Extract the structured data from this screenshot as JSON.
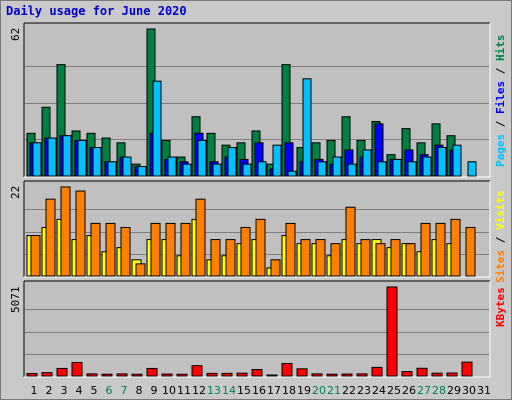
{
  "title": "Daily usage for June 2020",
  "chart_data": [
    {
      "type": "bar",
      "panel": "top",
      "max_label": "62",
      "ylim": [
        0,
        62
      ],
      "grid": true,
      "categories": [
        "1",
        "2",
        "3",
        "4",
        "5",
        "6",
        "7",
        "8",
        "9",
        "10",
        "11",
        "12",
        "13",
        "14",
        "15",
        "16",
        "17",
        "18",
        "19",
        "20",
        "21",
        "22",
        "23",
        "24",
        "25",
        "26",
        "27",
        "28",
        "29",
        "30",
        "31"
      ],
      "legend": [
        "Pages",
        "Files",
        "Hits"
      ],
      "series": [
        {
          "name": "Hits",
          "color": "#008040",
          "values": [
            18,
            29,
            47,
            19,
            18,
            16,
            14,
            5,
            62,
            15,
            8,
            25,
            18,
            13,
            14,
            19,
            5,
            47,
            12,
            14,
            15,
            25,
            15,
            23,
            9,
            20,
            14,
            22,
            17,
            0,
            0
          ]
        },
        {
          "name": "Files",
          "color": "#0000ff",
          "values": [
            14,
            16,
            17,
            15,
            12,
            6,
            8,
            4,
            18,
            7,
            6,
            18,
            6,
            8,
            7,
            14,
            3,
            14,
            6,
            7,
            5,
            11,
            8,
            22,
            7,
            11,
            9,
            13,
            11,
            0,
            0
          ]
        },
        {
          "name": "Pages",
          "color": "#00c0ff",
          "values": [
            14,
            16,
            17,
            15,
            12,
            6,
            8,
            4,
            40,
            8,
            5,
            15,
            5,
            12,
            5,
            6,
            13,
            2,
            41,
            6,
            8,
            5,
            11,
            6,
            7,
            6,
            8,
            12,
            13,
            6,
            0
          ]
        }
      ]
    },
    {
      "type": "bar",
      "panel": "middle",
      "max_label": "22",
      "ylim": [
        0,
        22
      ],
      "grid": true,
      "categories": [
        "1",
        "2",
        "3",
        "4",
        "5",
        "6",
        "7",
        "8",
        "9",
        "10",
        "11",
        "12",
        "13",
        "14",
        "15",
        "16",
        "17",
        "18",
        "19",
        "20",
        "21",
        "22",
        "23",
        "24",
        "25",
        "26",
        "27",
        "28",
        "29",
        "30",
        "31"
      ],
      "legend": [
        "Sites",
        "Visits"
      ],
      "series": [
        {
          "name": "Visits",
          "color": "#ffff00",
          "values": [
            10,
            12,
            14,
            9,
            10,
            6,
            7,
            4,
            9,
            9,
            5,
            14,
            4,
            5,
            8,
            9,
            2,
            10,
            8,
            8,
            5,
            9,
            8,
            9,
            7,
            8,
            6,
            9,
            8,
            0,
            0
          ]
        },
        {
          "name": "Sites",
          "color": "#ff8000",
          "values": [
            10,
            19,
            22,
            21,
            13,
            13,
            12,
            3,
            13,
            13,
            13,
            19,
            9,
            9,
            12,
            14,
            4,
            13,
            9,
            9,
            8,
            17,
            9,
            8,
            9,
            8,
            13,
            13,
            14,
            12,
            0
          ]
        }
      ]
    },
    {
      "type": "bar",
      "panel": "bottom",
      "max_label": "5071",
      "ylim": [
        0,
        5071
      ],
      "grid": true,
      "categories": [
        "1",
        "2",
        "3",
        "4",
        "5",
        "6",
        "7",
        "8",
        "9",
        "10",
        "11",
        "12",
        "13",
        "14",
        "15",
        "16",
        "17",
        "18",
        "19",
        "20",
        "21",
        "22",
        "23",
        "24",
        "25",
        "26",
        "27",
        "28",
        "29",
        "30",
        "31"
      ],
      "legend": [
        "KBytes"
      ],
      "series": [
        {
          "name": "KBytes",
          "color": "#ff0000",
          "values": [
            140,
            190,
            430,
            770,
            120,
            100,
            120,
            100,
            430,
            110,
            100,
            590,
            150,
            150,
            160,
            370,
            50,
            710,
            410,
            120,
            100,
            110,
            120,
            490,
            5071,
            250,
            440,
            160,
            170,
            790,
            0
          ]
        }
      ]
    }
  ],
  "x_labels": [
    {
      "label": "1",
      "weekend": false
    },
    {
      "label": "2",
      "weekend": false
    },
    {
      "label": "3",
      "weekend": false
    },
    {
      "label": "4",
      "weekend": false
    },
    {
      "label": "5",
      "weekend": false
    },
    {
      "label": "6",
      "weekend": true
    },
    {
      "label": "7",
      "weekend": true
    },
    {
      "label": "8",
      "weekend": false
    },
    {
      "label": "9",
      "weekend": false
    },
    {
      "label": "10",
      "weekend": false
    },
    {
      "label": "11",
      "weekend": false
    },
    {
      "label": "12",
      "weekend": false
    },
    {
      "label": "13",
      "weekend": true
    },
    {
      "label": "14",
      "weekend": true
    },
    {
      "label": "15",
      "weekend": false
    },
    {
      "label": "16",
      "weekend": false
    },
    {
      "label": "17",
      "weekend": false
    },
    {
      "label": "18",
      "weekend": false
    },
    {
      "label": "19",
      "weekend": false
    },
    {
      "label": "20",
      "weekend": true
    },
    {
      "label": "21",
      "weekend": true
    },
    {
      "label": "22",
      "weekend": false
    },
    {
      "label": "23",
      "weekend": false
    },
    {
      "label": "24",
      "weekend": false
    },
    {
      "label": "25",
      "weekend": false
    },
    {
      "label": "26",
      "weekend": false
    },
    {
      "label": "27",
      "weekend": true
    },
    {
      "label": "28",
      "weekend": true
    },
    {
      "label": "29",
      "weekend": false
    },
    {
      "label": "30",
      "weekend": false
    },
    {
      "label": "31",
      "weekend": false
    }
  ],
  "colors": {
    "weekday": "#000000",
    "weekend": "#00805a",
    "grid": "#7f7f7f",
    "panel_bg": "#c0c0c0"
  },
  "right_labels": {
    "top": [
      {
        "text": "Pages",
        "color": "#00c0ff"
      },
      {
        "text": " / ",
        "color": "#000000"
      },
      {
        "text": "Files",
        "color": "#0000ff"
      },
      {
        "text": " / ",
        "color": "#000000"
      },
      {
        "text": "Hits",
        "color": "#008040"
      }
    ],
    "middle": [
      {
        "text": "Sites",
        "color": "#ff8000"
      },
      {
        "text": " / ",
        "color": "#000000"
      },
      {
        "text": "Visits",
        "color": "#ffff00"
      }
    ],
    "bottom": [
      {
        "text": "KBytes",
        "color": "#ff0000"
      }
    ]
  }
}
